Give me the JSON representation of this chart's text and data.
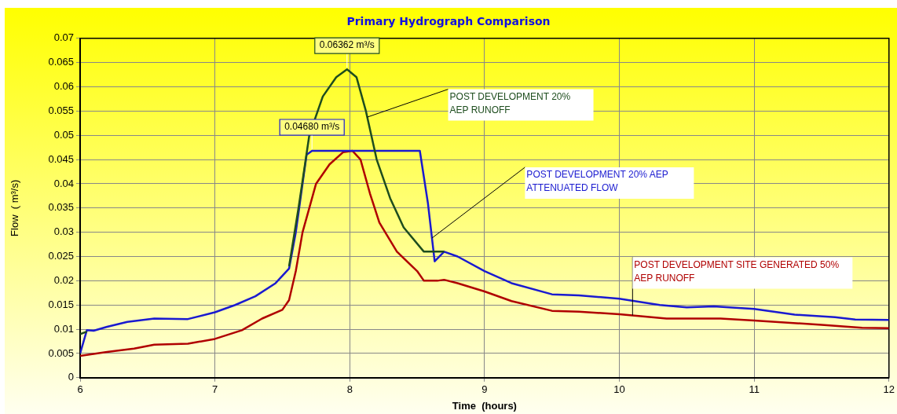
{
  "chart_data": {
    "type": "line",
    "title": "Primary Hydrograph Comparison",
    "xlabel": "Time  (hours)",
    "ylabel": "Flow  ( m³/s)",
    "xlim": [
      6,
      12
    ],
    "xticks": [
      6,
      7,
      8,
      9,
      10,
      11,
      12
    ],
    "ylim": [
      0,
      0.07
    ],
    "yticks": [
      0,
      0.005,
      0.01,
      0.015,
      0.02,
      0.025,
      0.03,
      0.035,
      0.04,
      0.045,
      0.05,
      0.055,
      0.06,
      0.065,
      0.07
    ],
    "grid": true,
    "legend": false,
    "marker": "none",
    "line_style": "solid",
    "series": [
      {
        "name": "POST DEVELOPMENT 20% AEP RUNOFF",
        "color": "#1e4d1e",
        "x": [
          6.0,
          6.05,
          6.1,
          7.55,
          7.62,
          7.7,
          7.8,
          7.9,
          7.98,
          8.05,
          8.12,
          8.2,
          8.3,
          8.4,
          8.55,
          8.65,
          8.7
        ],
        "values": [
          0.009,
          0.0095,
          null,
          0.023,
          0.035,
          0.05,
          0.058,
          0.062,
          0.06362,
          0.062,
          0.055,
          0.045,
          0.037,
          0.031,
          0.026,
          0.026,
          0.026
        ]
      },
      {
        "name": "POST DEVELOPMENT 20% AEP ATTENUATED FLOW",
        "color": "#1a1ad0",
        "x": [
          6.0,
          6.05,
          6.1,
          6.2,
          6.35,
          6.55,
          6.8,
          7.0,
          7.15,
          7.3,
          7.45,
          7.55,
          7.6,
          7.65,
          7.68,
          7.72,
          8.52,
          8.58,
          8.63,
          8.7,
          8.8,
          9.0,
          9.2,
          9.5,
          9.7,
          10.0,
          10.3,
          10.5,
          10.7,
          11.0,
          11.3,
          11.6,
          11.75,
          12.0
        ],
        "values": [
          0.005,
          0.0098,
          0.0097,
          0.0105,
          0.0115,
          0.0122,
          0.0121,
          0.0135,
          0.015,
          0.0168,
          0.0195,
          0.0225,
          0.03,
          0.04,
          0.046,
          0.0468,
          0.0468,
          0.036,
          0.024,
          0.026,
          0.025,
          0.022,
          0.0195,
          0.0172,
          0.017,
          0.0163,
          0.015,
          0.0145,
          0.0147,
          0.0142,
          0.013,
          0.0125,
          0.012,
          0.0119
        ]
      },
      {
        "name": "POST DEVELOPMENT SITE GENERATED 50% AEP RUNOFF",
        "color": "#b00000",
        "x": [
          6.0,
          6.2,
          6.4,
          6.55,
          6.8,
          7.0,
          7.2,
          7.35,
          7.5,
          7.55,
          7.6,
          7.65,
          7.7,
          7.75,
          7.85,
          7.95,
          8.02,
          8.08,
          8.15,
          8.22,
          8.35,
          8.5,
          8.55,
          8.65,
          8.7,
          8.8,
          9.0,
          9.2,
          9.5,
          9.7,
          10.0,
          10.35,
          10.75,
          11.0,
          11.5,
          11.8,
          12.0
        ],
        "values": [
          0.0045,
          0.0053,
          0.006,
          0.0068,
          0.007,
          0.008,
          0.0098,
          0.0122,
          0.014,
          0.016,
          0.022,
          0.03,
          0.035,
          0.04,
          0.044,
          0.0465,
          0.0468,
          0.045,
          0.038,
          0.032,
          0.026,
          0.022,
          0.02,
          0.02,
          0.0202,
          0.0195,
          0.0178,
          0.0158,
          0.0138,
          0.0136,
          0.0131,
          0.0122,
          0.0122,
          0.0118,
          0.0109,
          0.0103,
          0.0102
        ]
      }
    ],
    "annotations": [
      {
        "text": "0.06362 m³/s",
        "x": 7.98,
        "y": 0.06362
      },
      {
        "text": "0.04680 m³/s",
        "x": 7.72,
        "y": 0.0468
      }
    ]
  }
}
